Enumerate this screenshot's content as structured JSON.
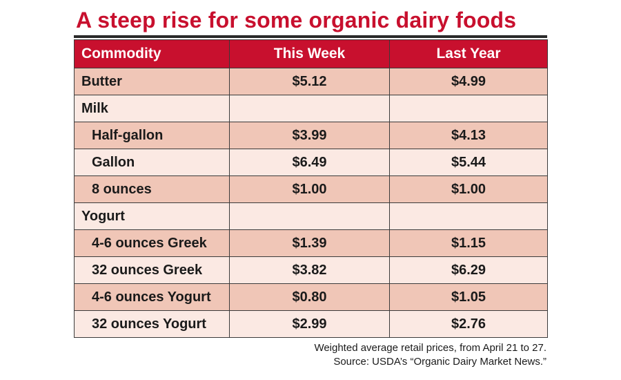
{
  "chart_data": {
    "type": "table",
    "title": "A steep rise for some organic dairy foods",
    "columns": [
      "Commodity",
      "This Week",
      "Last Year"
    ],
    "rows": [
      {
        "label": "Butter",
        "indent": false,
        "this_week": "$5.12",
        "last_year": "$4.99"
      },
      {
        "label": "Milk",
        "indent": false,
        "this_week": "",
        "last_year": ""
      },
      {
        "label": "Half-gallon",
        "indent": true,
        "this_week": "$3.99",
        "last_year": "$4.13"
      },
      {
        "label": "Gallon",
        "indent": true,
        "this_week": "$6.49",
        "last_year": "$5.44"
      },
      {
        "label": "8 ounces",
        "indent": true,
        "this_week": "$1.00",
        "last_year": "$1.00"
      },
      {
        "label": "Yogurt",
        "indent": false,
        "this_week": "",
        "last_year": ""
      },
      {
        "label": "4-6 ounces Greek",
        "indent": true,
        "this_week": "$1.39",
        "last_year": "$1.15"
      },
      {
        "label": "32 ounces Greek",
        "indent": true,
        "this_week": "$3.82",
        "last_year": "$6.29"
      },
      {
        "label": "4-6 ounces Yogurt",
        "indent": true,
        "this_week": "$0.80",
        "last_year": "$1.05"
      },
      {
        "label": "32 ounces Yogurt",
        "indent": true,
        "this_week": "$2.99",
        "last_year": "$2.76"
      }
    ],
    "footnote": [
      "Weighted average retail prices, from April 21 to 27.",
      "Source: USDA’s “Organic Dairy Market News.”"
    ],
    "colors": {
      "accent": "#c8102e",
      "header_text": "#ffffff",
      "row_dark": "#f0c6b7",
      "row_light": "#fbe9e3",
      "border": "#3a3a3a"
    }
  }
}
